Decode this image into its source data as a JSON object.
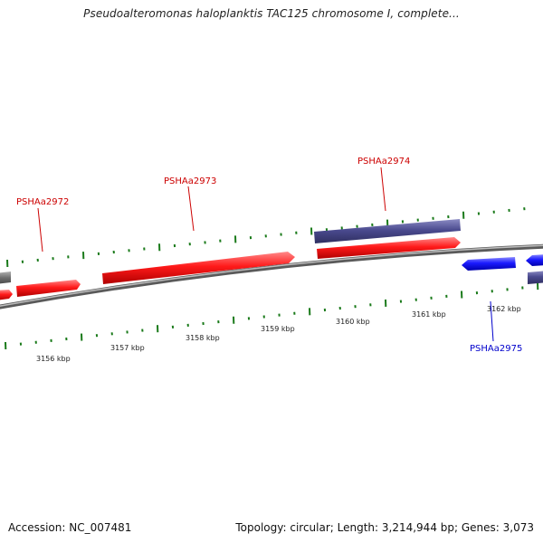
{
  "title": "Pseudoalteromonas haloplanktis TAC125 chromosome I, complete...",
  "footer": {
    "accession": "Accession: NC_007481",
    "topology": "Topology: circular; Length: 3,214,944 bp; Genes: 3,073"
  },
  "colors": {
    "forward_gene": "#ff1a1a",
    "reverse_gene": "#1a1aff",
    "other_feature": "#4b4b8f",
    "backbone": "#8a8a8a",
    "gc_ticks": "#1a7a1a",
    "label_forward": "#cc0000",
    "label_reverse": "#0000cc"
  },
  "scale": {
    "ticks": [
      {
        "label": "3156 kbp",
        "kbp": 3156
      },
      {
        "label": "3157 kbp",
        "kbp": 3157
      },
      {
        "label": "3158 kbp",
        "kbp": 3158
      },
      {
        "label": "3159 kbp",
        "kbp": 3159
      },
      {
        "label": "3160 kbp",
        "kbp": 3160
      },
      {
        "label": "3161 kbp",
        "kbp": 3161
      },
      {
        "label": "3162 kbp",
        "kbp": 3162
      }
    ]
  },
  "genes": [
    {
      "name": "PSHAa2972",
      "strand": "forward",
      "label_color": "#cc0000"
    },
    {
      "name": "PSHAa2973",
      "strand": "forward",
      "label_color": "#cc0000"
    },
    {
      "name": "PSHAa2974",
      "strand": "forward",
      "label_color": "#cc0000"
    },
    {
      "name": "PSHAa2975",
      "strand": "reverse",
      "label_color": "#0000cc"
    }
  ]
}
